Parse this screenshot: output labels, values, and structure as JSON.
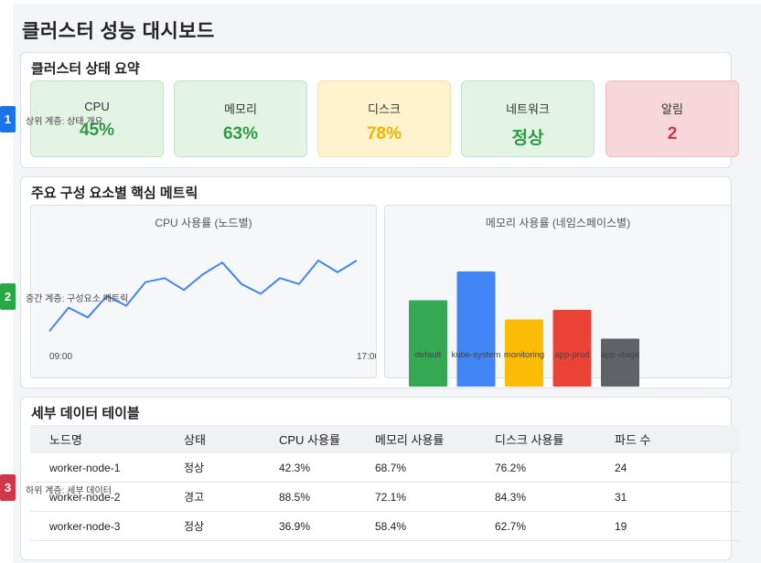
{
  "page_title": "클러스터 성능 대시보드",
  "tiers": [
    {
      "num": "1",
      "label": "상위 계층: 상태 개요",
      "color": "#1a73e8"
    },
    {
      "num": "2",
      "label": "중간 계층: 구성요소 메트릭",
      "color": "#28a745"
    },
    {
      "num": "3",
      "label": "하위 계층: 세부 데이터",
      "color": "#d0374a"
    }
  ],
  "summary": {
    "title": "클러스터 상태 요약",
    "cards": [
      {
        "label": "CPU",
        "value": "45%",
        "color": "#2e9a46",
        "bg": "#e3f4e5",
        "border": "#c2e4c8"
      },
      {
        "label": "메모리",
        "value": "63%",
        "color": "#2e9a46",
        "bg": "#e3f4e5",
        "border": "#c2e4c8"
      },
      {
        "label": "디스크",
        "value": "78%",
        "color": "#f0b400",
        "bg": "#fff3cd",
        "border": "#f8e3a3"
      },
      {
        "label": "네트워크",
        "value": "정상",
        "color": "#2e9a46",
        "bg": "#e3f4e5",
        "border": "#c2e4c8"
      },
      {
        "label": "알림",
        "value": "2",
        "color": "#d0374a",
        "bg": "#f8d7da",
        "border": "#efbcc2"
      }
    ]
  },
  "metrics": {
    "title": "주요 구성 요소별 핵심 메트릭",
    "cpu_chart": {
      "title": "CPU 사용률 (노드별)",
      "x_start": "09:00",
      "x_end": "17:00"
    },
    "mem_chart": {
      "title": "메모리 사용률 (네임스페이스별)"
    }
  },
  "chart_data": [
    {
      "type": "line",
      "title": "CPU 사용률 (노드별)",
      "x_tick_labels": [
        "09:00",
        "17:00"
      ],
      "values": [
        8,
        32,
        22,
        44,
        34,
        58,
        62,
        50,
        66,
        78,
        56,
        46,
        62,
        56,
        80,
        68,
        80
      ],
      "ylim": [
        0,
        100
      ],
      "color": "#4285f4",
      "grid": false
    },
    {
      "type": "bar",
      "title": "메모리 사용률 (네임스페이스별)",
      "categories": [
        "default",
        "kube-system",
        "monitoring",
        "app-prod",
        "app-stage"
      ],
      "values": [
        45,
        60,
        35,
        40,
        25
      ],
      "colors": [
        "#34a853",
        "#4285f4",
        "#fbbc05",
        "#ea4335",
        "#5f6368"
      ],
      "ylim": [
        0,
        70
      ],
      "grid": false
    }
  ],
  "details": {
    "title": "세부 데이터 테이블",
    "columns": [
      "노드명",
      "상태",
      "CPU 사용률",
      "메모리 사용률",
      "디스크 사용률",
      "파드 수"
    ],
    "rows": [
      {
        "cells": [
          "worker-node-1",
          "정상",
          "42.3%",
          "68.7%",
          "76.2%",
          "24"
        ],
        "classes": [
          "",
          "ok",
          "",
          "",
          "",
          ""
        ]
      },
      {
        "cells": [
          "worker-node-2",
          "경고",
          "88.5%",
          "72.1%",
          "84.3%",
          "31"
        ],
        "classes": [
          "",
          "warn",
          "warn",
          "",
          "mid",
          ""
        ]
      },
      {
        "cells": [
          "worker-node-3",
          "정상",
          "36.9%",
          "58.4%",
          "62.7%",
          "19"
        ],
        "classes": [
          "",
          "ok",
          "",
          "",
          "",
          ""
        ]
      }
    ]
  }
}
